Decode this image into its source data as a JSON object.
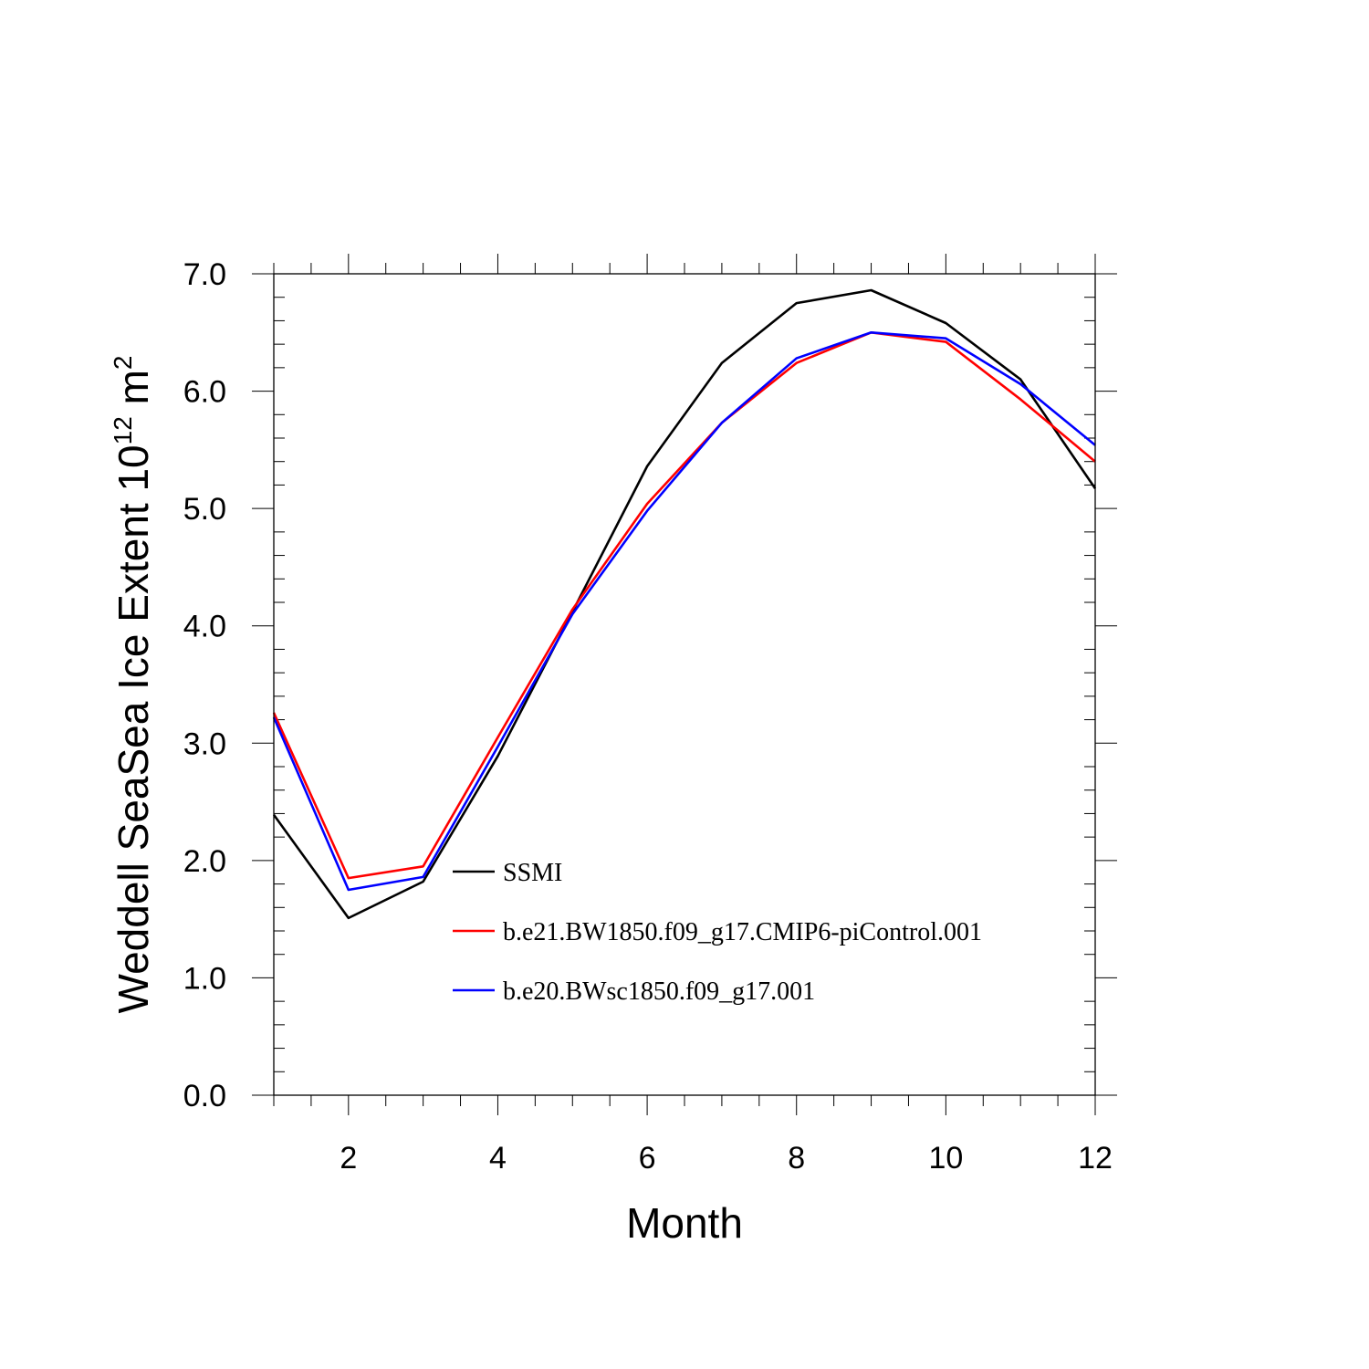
{
  "chart_data": {
    "type": "line",
    "xlabel": "Month",
    "ylabel": {
      "text": "Weddell SeaSea Ice Extent 10",
      "exponent_base_sup": "12",
      "unit": " m",
      "unit_sup": "2"
    },
    "xlim": [
      1,
      12
    ],
    "ylim": [
      0,
      7
    ],
    "x_major_ticks": [
      2,
      4,
      6,
      8,
      10,
      12
    ],
    "x_tick_labels": [
      "2",
      "4",
      "6",
      "8",
      "10",
      "12"
    ],
    "y_major_ticks": [
      0,
      1,
      2,
      3,
      4,
      5,
      6,
      7
    ],
    "y_tick_labels": [
      "0.0",
      "1.0",
      "2.0",
      "3.0",
      "4.0",
      "5.0",
      "6.0",
      "7.0"
    ],
    "grid": false,
    "legend_position": "lower-center",
    "x": [
      1,
      2,
      3,
      4,
      5,
      6,
      7,
      8,
      9,
      10,
      11,
      12
    ],
    "series": [
      {
        "name": "SSMI",
        "color": "#000000",
        "values": [
          2.39,
          1.51,
          1.82,
          2.89,
          4.12,
          5.36,
          6.24,
          6.75,
          6.86,
          6.58,
          6.1,
          5.17
        ]
      },
      {
        "name": "b.e21.BW1850.f09_g17.CMIP6-piControl.001",
        "color": "#ff0000",
        "values": [
          3.26,
          1.85,
          1.95,
          3.05,
          4.14,
          5.04,
          5.73,
          6.24,
          6.5,
          6.42,
          5.93,
          5.4
        ]
      },
      {
        "name": "b.e20.BWsc1850.f09_g17.001",
        "color": "#0000ff",
        "values": [
          3.22,
          1.75,
          1.86,
          2.97,
          4.1,
          4.98,
          5.73,
          6.28,
          6.5,
          6.45,
          6.06,
          5.54
        ]
      }
    ]
  }
}
